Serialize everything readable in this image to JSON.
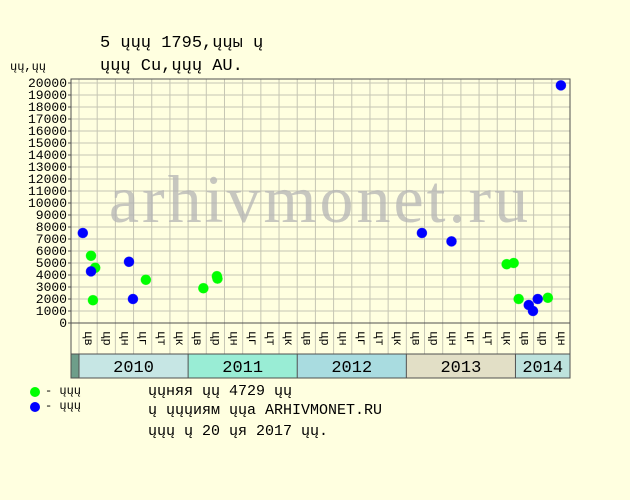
{
  "watermark": "arhivmonet.ru",
  "notes": [
    "ųųняя ųų 4729 ųų",
    "ų ųųųиям ųųа ARHIVMONET.RU",
    "ųųų ų 20 ųя 2017 ųų."
  ],
  "chart_data": {
    "type": "scatter",
    "title": "5 ųųų 1795,ųųы ų",
    "subtitle": "ųųų Cu,ųųų AU.",
    "ylabel": "ųų,ųų",
    "ylim": [
      0,
      20000
    ],
    "grid": true,
    "legend_position": "bottom-left",
    "y_ticks": [
      "0",
      "1000",
      "2000",
      "3000",
      "4000",
      "5000",
      "6000",
      "7000",
      "8000",
      "9000",
      "10000",
      "11000",
      "12000",
      "13000",
      "14000",
      "15000",
      "16000",
      "17000",
      "18000",
      "19000",
      "20000"
    ],
    "x_groups": [
      {
        "year": "2010",
        "color": "#C6E6E4",
        "ticks": [
          "цв",
          "цр",
          "цн",
          "цг",
          "цт",
          "цк"
        ]
      },
      {
        "year": "2011",
        "color": "#99EDD5",
        "ticks": [
          "цв",
          "цр",
          "цн",
          "цг",
          "цт",
          "цк"
        ]
      },
      {
        "year": "2012",
        "color": "#A9DCE0",
        "ticks": [
          "цв",
          "цр",
          "цн",
          "цг",
          "цт",
          "цк"
        ]
      },
      {
        "year": "2013",
        "color": "#E2DFC6",
        "ticks": [
          "цв",
          "цр",
          "цн",
          "цг",
          "цт",
          "цк"
        ]
      },
      {
        "year": "2014",
        "color": "#BDE2DD",
        "ticks": [
          "цв",
          "цр",
          "цн"
        ]
      }
    ],
    "series": [
      {
        "name": "- ųųų",
        "color": "#00FF00",
        "points": [
          {
            "x": "2010-02-10",
            "y": 5600
          },
          {
            "x": "2010-02-16",
            "y": 1900
          },
          {
            "x": "2010-02-23",
            "y": 4600
          },
          {
            "x": "2010-08-12",
            "y": 3600
          },
          {
            "x": "2011-02-20",
            "y": 2900
          },
          {
            "x": "2011-04-06",
            "y": 3900
          },
          {
            "x": "2011-04-08",
            "y": 3700
          },
          {
            "x": "2013-12-02",
            "y": 4900
          },
          {
            "x": "2013-12-26",
            "y": 5000
          },
          {
            "x": "2014-01-12",
            "y": 2000
          },
          {
            "x": "2014-04-18",
            "y": 2100
          }
        ]
      },
      {
        "name": "- ųųų",
        "color": "#0000FF",
        "points": [
          {
            "x": "2010-01-14",
            "y": 7500
          },
          {
            "x": "2010-02-10",
            "y": 4300
          },
          {
            "x": "2010-06-16",
            "y": 5100
          },
          {
            "x": "2010-06-29",
            "y": 2000
          },
          {
            "x": "2013-02-21",
            "y": 7500
          },
          {
            "x": "2013-05-31",
            "y": 6800
          },
          {
            "x": "2014-02-14",
            "y": 1500
          },
          {
            "x": "2014-02-27",
            "y": 1000
          },
          {
            "x": "2014-03-15",
            "y": 2000
          },
          {
            "x": "2014-06-01",
            "y": 19800
          }
        ]
      }
    ]
  }
}
